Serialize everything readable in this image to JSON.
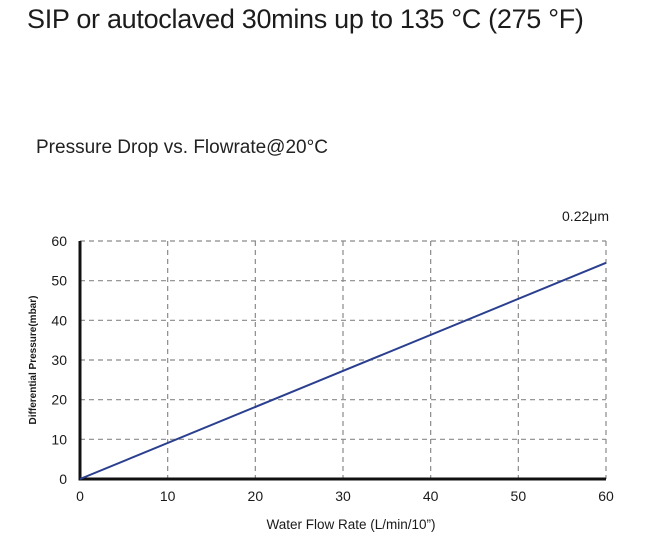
{
  "heading": "SIP or autoclaved 30mins up to 135 °C (275 °F)",
  "chart_data": {
    "type": "line",
    "title": "Pressure Drop vs. Flowrate@20°C",
    "xlabel": "Water Flow Rate (L/min/10”)",
    "ylabel": "Differential Pressure(mbar)",
    "xlim": [
      0,
      60
    ],
    "ylim": [
      0,
      60
    ],
    "xticks": [
      0,
      10,
      20,
      30,
      40,
      50,
      60
    ],
    "yticks": [
      0,
      10,
      20,
      30,
      40,
      50,
      60
    ],
    "grid": true,
    "grid_style": "dashed",
    "series": [
      {
        "name": "0.22μm",
        "color": "#2b3f8f",
        "x": [
          0,
          60
        ],
        "y": [
          0,
          54.5
        ]
      }
    ]
  }
}
